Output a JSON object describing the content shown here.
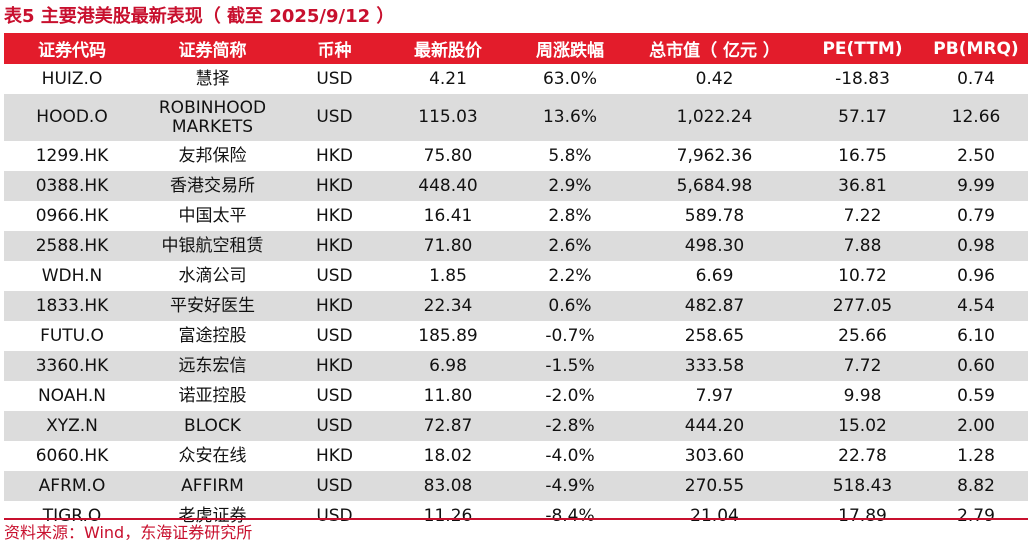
{
  "title": "表5  主要港美股最新表现（ 截至 2025/9/12 ）",
  "columns": [
    "证券代码",
    "证券简称",
    "币种",
    "最新股价",
    "周涨跌幅",
    "总市值（ 亿元 ）",
    "PE(TTM)",
    "PB(MRQ)"
  ],
  "rows": [
    [
      "HUIZ.O",
      "慧择",
      "USD",
      "4.21",
      "63.0%",
      "0.42",
      "-18.83",
      "0.74"
    ],
    [
      "HOOD.O",
      "ROBINHOOD MARKETS",
      "USD",
      "115.03",
      "13.6%",
      "1,022.24",
      "57.17",
      "12.66"
    ],
    [
      "1299.HK",
      "友邦保险",
      "HKD",
      "75.80",
      "5.8%",
      "7,962.36",
      "16.75",
      "2.50"
    ],
    [
      "0388.HK",
      "香港交易所",
      "HKD",
      "448.40",
      "2.9%",
      "5,684.98",
      "36.81",
      "9.99"
    ],
    [
      "0966.HK",
      "中国太平",
      "HKD",
      "16.41",
      "2.8%",
      "589.78",
      "7.22",
      "0.79"
    ],
    [
      "2588.HK",
      "中银航空租赁",
      "HKD",
      "71.80",
      "2.6%",
      "498.30",
      "7.88",
      "0.98"
    ],
    [
      "WDH.N",
      "水滴公司",
      "USD",
      "1.85",
      "2.2%",
      "6.69",
      "10.72",
      "0.96"
    ],
    [
      "1833.HK",
      "平安好医生",
      "HKD",
      "22.34",
      "0.6%",
      "482.87",
      "277.05",
      "4.54"
    ],
    [
      "FUTU.O",
      "富途控股",
      "USD",
      "185.89",
      "-0.7%",
      "258.65",
      "25.66",
      "6.10"
    ],
    [
      "3360.HK",
      "远东宏信",
      "HKD",
      "6.98",
      "-1.5%",
      "333.58",
      "7.72",
      "0.60"
    ],
    [
      "NOAH.N",
      "诺亚控股",
      "USD",
      "11.80",
      "-2.0%",
      "7.97",
      "9.98",
      "0.59"
    ],
    [
      "XYZ.N",
      "BLOCK",
      "USD",
      "72.87",
      "-2.8%",
      "444.20",
      "15.02",
      "2.00"
    ],
    [
      "6060.HK",
      "众安在线",
      "HKD",
      "18.02",
      "-4.0%",
      "303.60",
      "22.78",
      "1.28"
    ],
    [
      "AFRM.O",
      "AFFIRM",
      "USD",
      "83.08",
      "-4.9%",
      "270.55",
      "518.43",
      "8.82"
    ],
    [
      "TIGR.O",
      "老虎证券",
      "USD",
      "11.26",
      "-8.4%",
      "21.04",
      "17.89",
      "2.79"
    ]
  ],
  "source": "资料来源：Wind，东海证券研究所",
  "colors": {
    "header_bg": "#e31c2b",
    "title_red": "#c8102e",
    "stripe_gray": "#dcdcdc"
  }
}
